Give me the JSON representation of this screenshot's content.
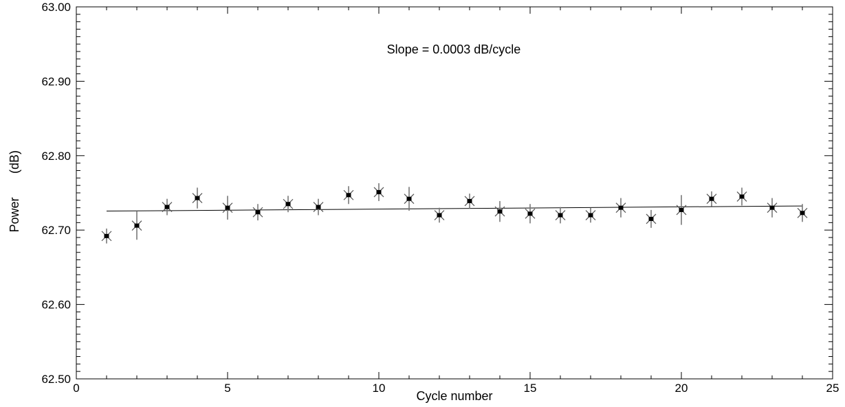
{
  "chart_data": {
    "type": "scatter",
    "title": "",
    "xlabel": "Cycle number",
    "ylabel": "Power",
    "ylabel_unit": "(dB)",
    "xlim": [
      0,
      25
    ],
    "ylim": [
      62.5,
      63.0
    ],
    "x_ticks": [
      0,
      5,
      10,
      15,
      20,
      25
    ],
    "x_tick_labels": [
      "0",
      "5",
      "10",
      "15",
      "20",
      "25"
    ],
    "y_ticks": [
      62.5,
      62.6,
      62.7,
      62.8,
      62.9,
      63.0
    ],
    "y_tick_labels": [
      "62.50",
      "62.60",
      "62.70",
      "62.80",
      "62.90",
      "63.00"
    ],
    "grid": false,
    "annotation": "Slope =  0.0003 dB/cycle",
    "series": [
      {
        "x": [
          1,
          2,
          3,
          4,
          5,
          6,
          7,
          8,
          9,
          10,
          11,
          12,
          13,
          14,
          15,
          16,
          17,
          18,
          19,
          20,
          21,
          22,
          23,
          24
        ],
        "y": [
          62.692,
          62.706,
          62.731,
          62.743,
          62.73,
          62.724,
          62.735,
          62.731,
          62.747,
          62.751,
          62.742,
          62.72,
          62.739,
          62.725,
          62.722,
          62.72,
          62.72,
          62.73,
          62.715,
          62.727,
          62.742,
          62.745,
          62.73,
          62.723
        ],
        "err": [
          0.01,
          0.019,
          0.011,
          0.014,
          0.016,
          0.011,
          0.011,
          0.011,
          0.012,
          0.012,
          0.016,
          0.01,
          0.01,
          0.014,
          0.013,
          0.011,
          0.01,
          0.013,
          0.012,
          0.02,
          0.01,
          0.012,
          0.013,
          0.012
        ]
      }
    ],
    "fit_line": {
      "x": [
        1,
        24
      ],
      "y": [
        62.7255,
        62.7324
      ]
    }
  }
}
